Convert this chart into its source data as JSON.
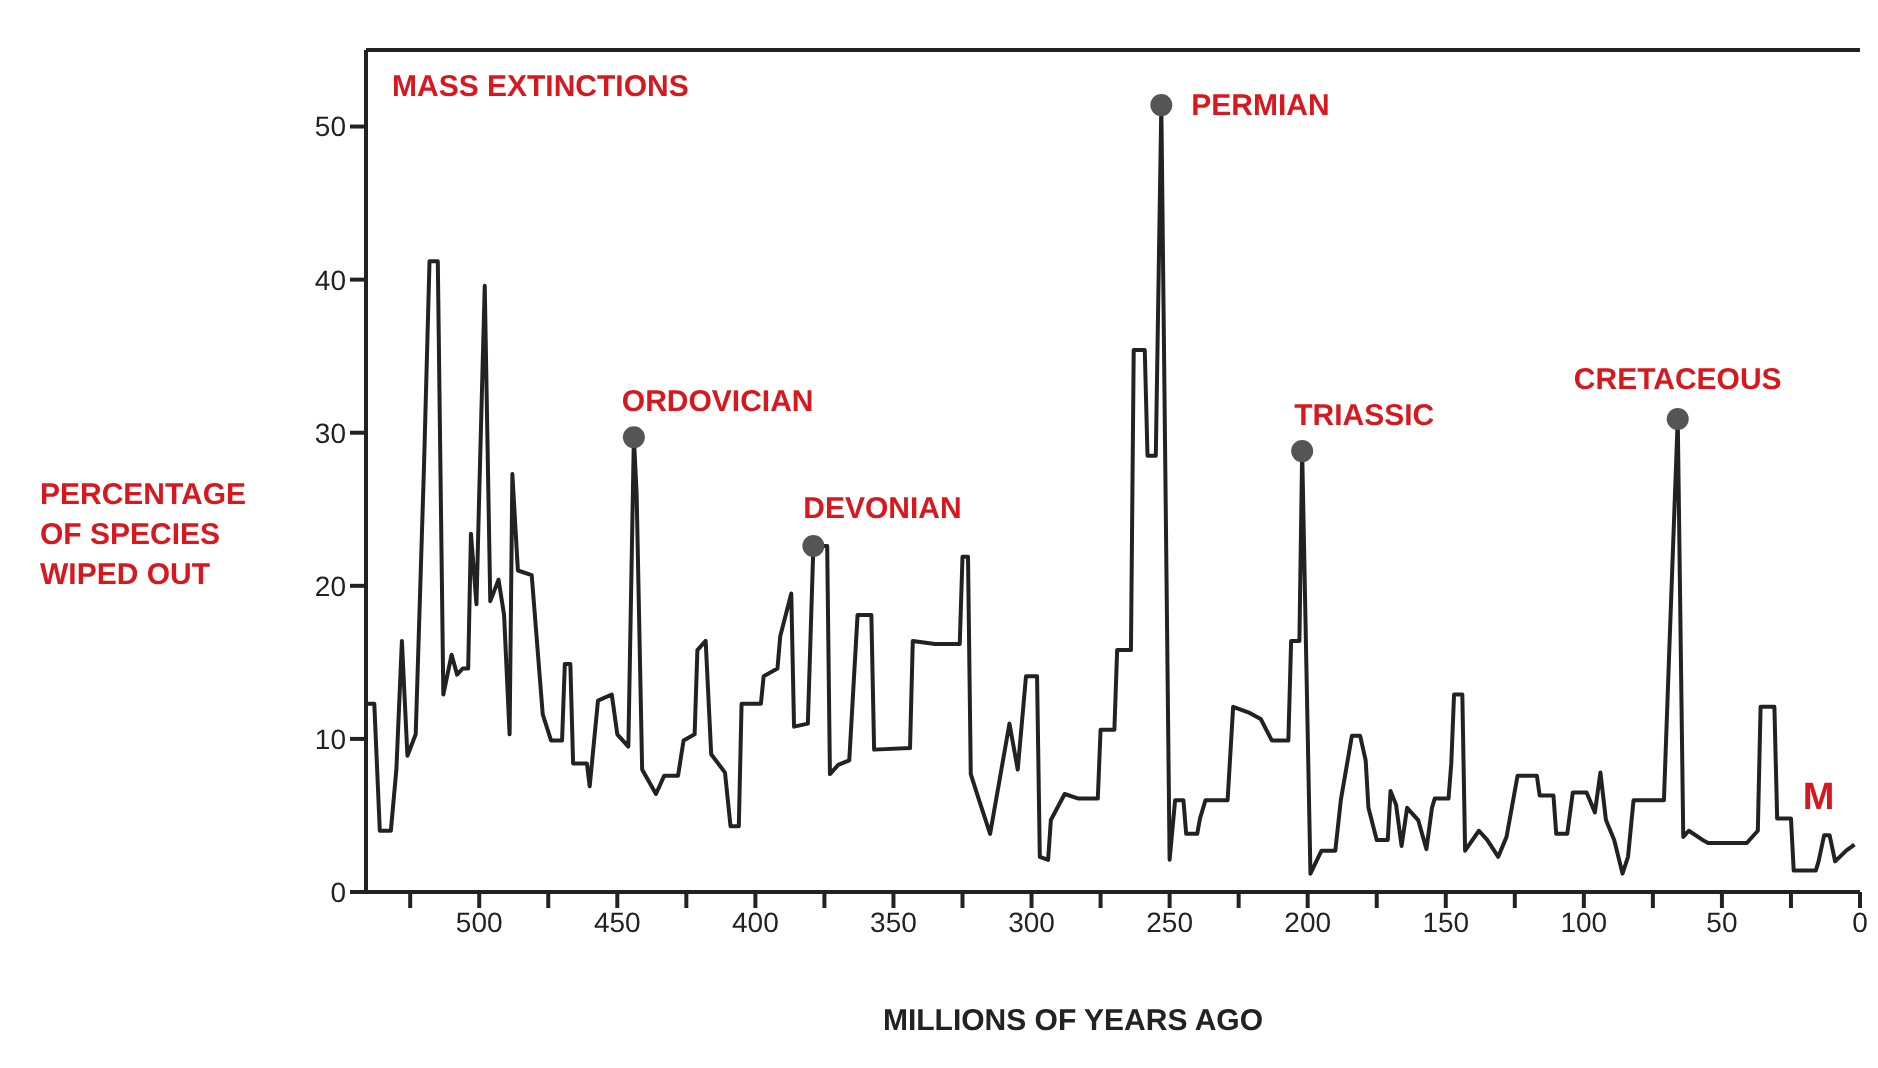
{
  "chart_data": {
    "type": "line",
    "title": "MASS EXTINCTIONS",
    "xlabel": "MILLIONS OF YEARS AGO",
    "ylabel": "PERCENTAGE OF SPECIES WIPED OUT",
    "xlim": [
      541,
      0
    ],
    "ylim": [
      0,
      55
    ],
    "xticks": [
      {
        "value": 525,
        "label": null
      },
      500,
      {
        "value": 475,
        "label": null
      },
      450,
      {
        "value": 425,
        "label": null
      },
      400,
      {
        "value": 375,
        "label": null
      },
      350,
      {
        "value": 325,
        "label": null
      },
      300,
      {
        "value": 275,
        "label": null
      },
      250,
      {
        "value": 225,
        "label": null
      },
      200,
      {
        "value": 175,
        "label": null
      },
      150,
      {
        "value": 125,
        "label": null
      },
      100,
      {
        "value": 75,
        "label": null
      },
      50,
      {
        "value": 25,
        "label": null
      },
      0
    ],
    "yticks": [
      0,
      10,
      20,
      30,
      40,
      50
    ],
    "grid": false,
    "legend": false,
    "series": [
      {
        "color": "#222222",
        "marker": "none",
        "line_style": "solid",
        "x": [
          541,
          538,
          536,
          532,
          530,
          528,
          526,
          523,
          520,
          518,
          515,
          513,
          510,
          508,
          506,
          504,
          503,
          501,
          500,
          498,
          496,
          493,
          491,
          489,
          488,
          486,
          481,
          477,
          474,
          470,
          469,
          467,
          466,
          461,
          460,
          457,
          452,
          450,
          446,
          444,
          443,
          441,
          436,
          433,
          428,
          426,
          422,
          421,
          418,
          416,
          411,
          409,
          406,
          405,
          398,
          397,
          392,
          391,
          387,
          386,
          381,
          379,
          374,
          373,
          370,
          366,
          363,
          358,
          357,
          344,
          343,
          335,
          326,
          325,
          323,
          322,
          319,
          315,
          308,
          305,
          302,
          298,
          297,
          294,
          293,
          288,
          283,
          276,
          275,
          270,
          269,
          264,
          263,
          259,
          258,
          255,
          253,
          250,
          248,
          245,
          244,
          240,
          239,
          237,
          229,
          227,
          221,
          217,
          213,
          207,
          206,
          203,
          202,
          199,
          195,
          190,
          188,
          184,
          181,
          179,
          178,
          175,
          171,
          170,
          168,
          166,
          164,
          160,
          157,
          155,
          154,
          149,
          148,
          147,
          144,
          143,
          138,
          135,
          131,
          128,
          124,
          117,
          116,
          111,
          110,
          106,
          104,
          99,
          96,
          94,
          92,
          89,
          86,
          84,
          82,
          71,
          69,
          66,
          64,
          62,
          57,
          55,
          41,
          37,
          36,
          31,
          30,
          25,
          24,
          16,
          15,
          13,
          11,
          9,
          5,
          2
        ],
        "values": [
          12.3,
          12.3,
          4.0,
          4.0,
          8.0,
          16.4,
          8.9,
          10.3,
          27.8,
          41.2,
          41.2,
          12.9,
          15.5,
          14.2,
          14.6,
          14.6,
          23.4,
          18.8,
          26.0,
          39.6,
          19.0,
          20.4,
          18.1,
          10.3,
          27.3,
          21.0,
          20.7,
          11.6,
          9.9,
          9.9,
          14.9,
          14.9,
          8.4,
          8.4,
          6.9,
          12.5,
          12.9,
          10.3,
          9.5,
          29.7,
          26.0,
          8.0,
          6.4,
          7.6,
          7.6,
          9.9,
          10.3,
          15.8,
          16.4,
          9.0,
          7.8,
          4.3,
          4.3,
          12.3,
          12.3,
          14.1,
          14.6,
          16.7,
          19.5,
          10.8,
          11.0,
          22.6,
          22.6,
          7.7,
          8.3,
          8.6,
          18.1,
          18.1,
          9.3,
          9.4,
          16.4,
          16.2,
          16.2,
          21.9,
          21.9,
          7.7,
          6.0,
          3.8,
          11.0,
          8.0,
          14.1,
          14.1,
          2.3,
          2.1,
          4.7,
          6.4,
          6.1,
          6.1,
          10.6,
          10.6,
          15.8,
          15.8,
          35.4,
          35.4,
          28.5,
          28.5,
          51.4,
          2.1,
          6.0,
          6.0,
          3.8,
          3.8,
          4.8,
          6.0,
          6.0,
          12.1,
          11.7,
          11.3,
          9.9,
          9.9,
          16.4,
          16.4,
          28.8,
          1.2,
          2.7,
          2.7,
          6.0,
          10.2,
          10.2,
          8.6,
          5.5,
          3.4,
          3.4,
          6.6,
          5.7,
          3.0,
          5.5,
          4.7,
          2.8,
          5.5,
          6.1,
          6.1,
          8.4,
          12.9,
          12.9,
          2.7,
          4.0,
          3.4,
          2.3,
          3.6,
          7.6,
          7.6,
          6.3,
          6.3,
          3.8,
          3.8,
          6.5,
          6.5,
          5.2,
          7.8,
          4.7,
          3.4,
          1.2,
          2.3,
          6.0,
          6.0,
          16.1,
          30.9,
          3.6,
          4.0,
          3.4,
          3.2,
          3.2,
          4.0,
          12.1,
          12.1,
          4.8,
          4.8,
          1.4,
          1.4,
          2.0,
          3.7,
          3.7,
          2.0,
          2.7,
          3.1
        ]
      },
      {
        "type": "scatter",
        "color": "#555555",
        "marker": "circle",
        "x": [
          444,
          379,
          253,
          202,
          66
        ],
        "values": [
          29.7,
          22.6,
          51.4,
          28.8,
          30.9
        ]
      }
    ],
    "annotations": [
      {
        "text": "ORDOVICIAN",
        "x": 444,
        "y": 29.7
      },
      {
        "text": "DEVONIAN",
        "x": 379,
        "y": 22.6
      },
      {
        "text": "PERMIAN",
        "x": 253,
        "y": 51.4
      },
      {
        "text": "TRIASSIC",
        "x": 202,
        "y": 28.8
      },
      {
        "text": "CRETACEOUS",
        "x": 66,
        "y": 30.9
      },
      {
        "text": "M",
        "x": 15,
        "y": 2.0
      }
    ]
  }
}
